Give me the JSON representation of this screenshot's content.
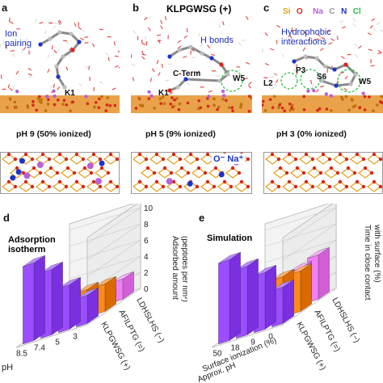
{
  "top": {
    "title": "KLPGWSG (+)",
    "legend": [
      {
        "text": "Si",
        "color": "#e0a11a"
      },
      {
        "text": "O",
        "color": "#d9251d"
      },
      {
        "text": "Na",
        "color": "#b861d8"
      },
      {
        "text": "C",
        "color": "#9a9a9a"
      },
      {
        "text": "N",
        "color": "#1c34c8"
      },
      {
        "text": "Cl",
        "color": "#2dbe4a"
      }
    ],
    "panels": [
      {
        "letter": "a",
        "note": "Ion\npairing",
        "labels": [
          "K1"
        ],
        "caption": "pH 9 (50% ionized)"
      },
      {
        "letter": "b",
        "note": "H bonds",
        "labels": [
          "C-Term",
          "K1",
          "W5"
        ],
        "caption": "pH 5 (9% ionized)"
      },
      {
        "letter": "c",
        "note": "Hydrophobic\ninteractions",
        "labels": [
          "P3",
          "S6",
          "L2",
          "W5"
        ],
        "caption": "pH 3 (0% ionized)"
      }
    ],
    "ion_label": "O⁻ Na⁺"
  },
  "chart_d": {
    "letter": "d",
    "inset": "Adsorption\nisotherm",
    "zlabel": "Adsorbed amount\n(peptides per nm²)",
    "zticks": [
      "0",
      "2",
      "4",
      "6",
      "8",
      "10"
    ],
    "xlabel": "pH",
    "xticks": [
      "8.5",
      "7.4",
      "5",
      "3"
    ],
    "peptide_labels": [
      "KLPGWSG (+)",
      "AFILPTG (=)",
      "LDHSLHS (−)"
    ]
  },
  "chart_e": {
    "letter": "e",
    "inset": "Simulation",
    "zlabel": "Time in close contact\nwith surface (%)",
    "xticks": [
      "50",
      "18",
      "9",
      "0"
    ],
    "xlabel1": "Surface ionization (%)",
    "xlabel2": "Approx. pH",
    "peptide_labels": [
      "KLPGWSG (+)",
      "AFILPTG (=)",
      "LDHSLHS (−)"
    ]
  },
  "chart_data": [
    {
      "type": "bar",
      "title": "",
      "categories": [
        "8.5",
        "7.4",
        "5",
        "3"
      ],
      "zlabel": "Adsorbed amount (peptides per nm²)",
      "zlim": [
        0,
        10
      ],
      "series": [
        {
          "name": "KLPGWSG (+)",
          "values": [
            9.6,
            8.1,
            5.5,
            3.5
          ]
        },
        {
          "name": "AFILPTG (=)",
          "values": [
            3.6,
            3.5,
            3.4,
            3.4
          ]
        },
        {
          "name": "LDHSLHS (−)",
          "values": [
            1.4,
            1.2,
            1.0,
            2.5
          ]
        }
      ]
    },
    {
      "type": "bar",
      "title": "",
      "categories": [
        "50",
        "18",
        "9",
        "0"
      ],
      "zlabel": "Time in close contact with surface (%)",
      "series": [
        {
          "name": "KLPGWSG (+)",
          "values": [
            100,
            85,
            70,
            45
          ]
        },
        {
          "name": "AFILPTG (=)",
          "values": [
            45,
            55,
            50,
            50
          ]
        },
        {
          "name": "LDHSLHS (−)",
          "values": [
            45,
            40,
            45,
            55
          ]
        }
      ]
    }
  ]
}
